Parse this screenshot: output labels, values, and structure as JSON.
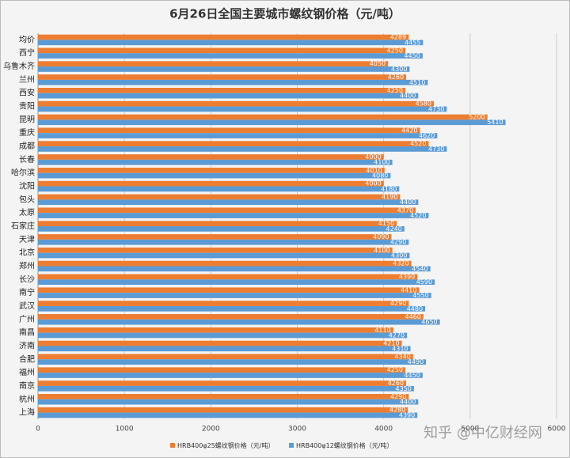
{
  "chart_data": {
    "type": "bar",
    "orientation": "horizontal",
    "title": "6月26日全国主要城市螺纹钢价格（元/吨）",
    "categories": [
      "均价",
      "西宁",
      "乌鲁木齐",
      "兰州",
      "西安",
      "贵阳",
      "昆明",
      "重庆",
      "成都",
      "长春",
      "哈尔滨",
      "沈阳",
      "包头",
      "太原",
      "石家庄",
      "天津",
      "北京",
      "郑州",
      "长沙",
      "南宁",
      "武汉",
      "广州",
      "南昌",
      "济南",
      "合肥",
      "福州",
      "南京",
      "杭州",
      "上海"
    ],
    "series": [
      {
        "name": "HRB400φ25螺纹钢价格（元/吨）",
        "color": "#ed7d31",
        "values": [
          4289,
          4250,
          4050,
          4260,
          4250,
          4580,
          5200,
          4420,
          4520,
          4000,
          4010,
          4000,
          4190,
          4370,
          4150,
          4090,
          4100,
          4320,
          4390,
          4410,
          4290,
          4460,
          4110,
          4210,
          4340,
          4250,
          4260,
          4290,
          4280
        ]
      },
      {
        "name": "HRB400φ12螺纹钢价格（元/吨）",
        "color": "#5b9bd5",
        "values": [
          4455,
          4450,
          4300,
          4510,
          4400,
          4730,
          5410,
          4620,
          4730,
          4100,
          4080,
          4180,
          4400,
          4520,
          4240,
          4290,
          4300,
          4540,
          4590,
          4550,
          4480,
          4650,
          4270,
          4310,
          4490,
          4450,
          4350,
          4400,
          4390
        ]
      }
    ],
    "xlim": [
      0,
      6000
    ],
    "xticks": [
      0,
      1000,
      2000,
      3000,
      4000,
      5000,
      6000
    ],
    "grid": true,
    "watermark": "知乎 @中亿财经网"
  }
}
